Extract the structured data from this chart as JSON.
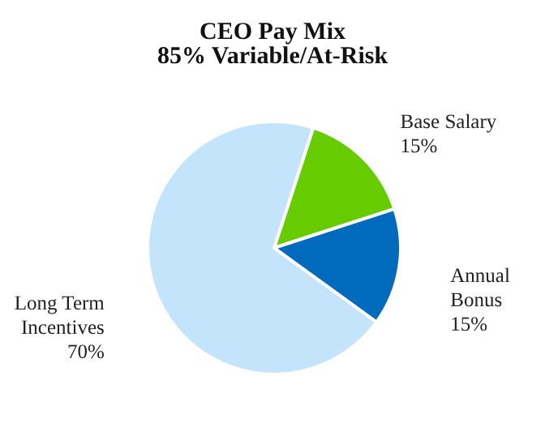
{
  "chart_data": {
    "type": "pie",
    "title": "CEO Pay Mix",
    "subtitle": "85% Variable/At-Risk",
    "categories": [
      "Base Salary",
      "Annual Bonus",
      "Long Term Incentives"
    ],
    "values": [
      15,
      15,
      70
    ],
    "colors": [
      "#66cc00",
      "#006bbd",
      "#c4e4fb"
    ],
    "value_labels": [
      "15%",
      "15%",
      "70%"
    ],
    "legend": false
  }
}
